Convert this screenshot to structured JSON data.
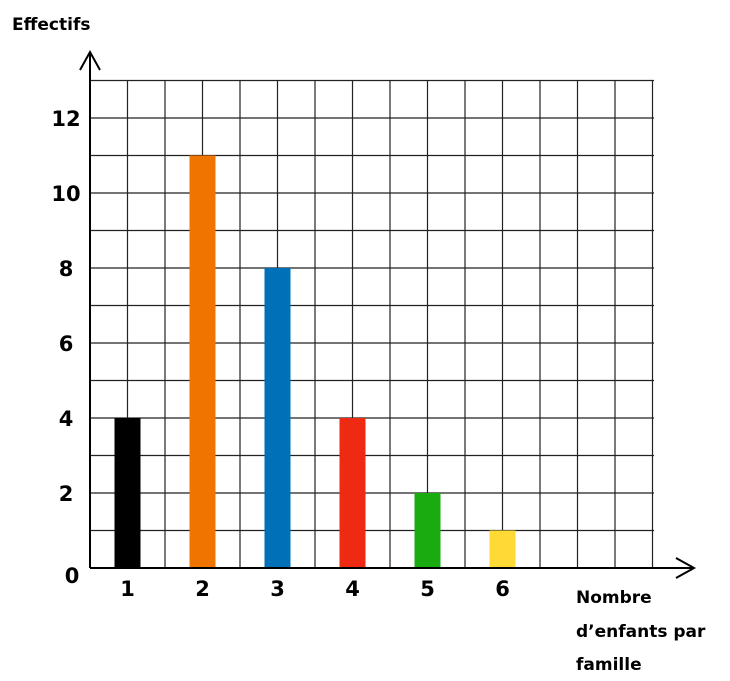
{
  "chart_data": {
    "type": "bar",
    "categories": [
      "1",
      "2",
      "3",
      "4",
      "5",
      "6"
    ],
    "values": [
      4,
      11,
      8,
      4,
      2,
      1
    ],
    "colors": [
      "#000000",
      "#f07400",
      "#0070b8",
      "#ee2a12",
      "#1aab10",
      "#ffd936"
    ],
    "ylabel": "Effectifs",
    "xlabel_lines": [
      "Nombre",
      "d’enfants par",
      "famille"
    ],
    "origin_label": "0",
    "y_ticks": [
      "2",
      "4",
      "6",
      "8",
      "10",
      "12"
    ],
    "ylim": [
      0,
      13
    ],
    "grid": true
  }
}
